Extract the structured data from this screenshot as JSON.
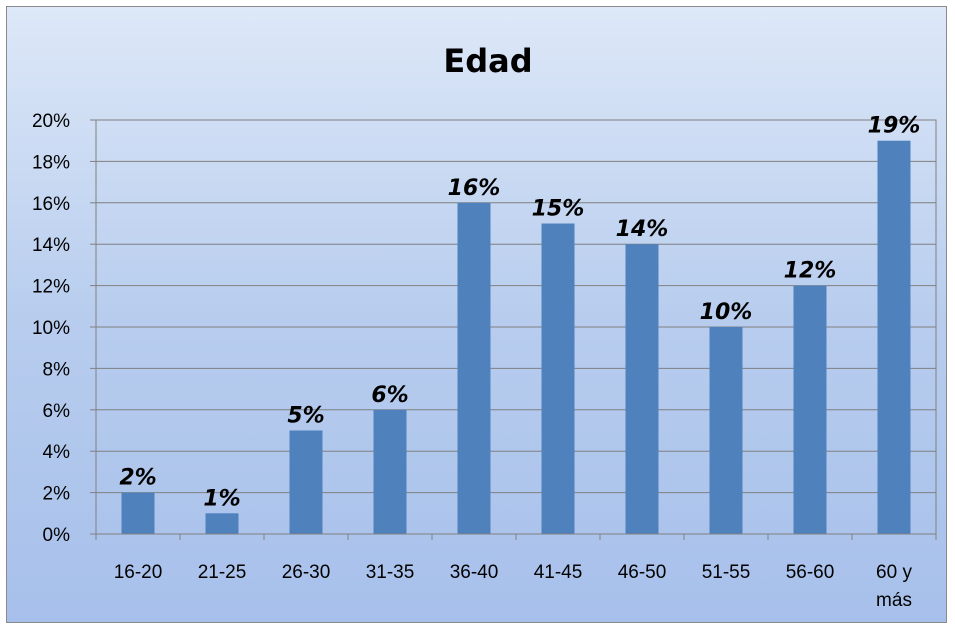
{
  "chart_data": {
    "type": "bar",
    "title": "Edad",
    "categories": [
      "16-20",
      "21-25",
      "26-30",
      "31-35",
      "36-40",
      "41-45",
      "46-50",
      "51-55",
      "56-60",
      "60 y más"
    ],
    "values": [
      2,
      1,
      5,
      6,
      16,
      15,
      14,
      10,
      12,
      19
    ],
    "data_labels": [
      "2%",
      "1%",
      "5%",
      "6%",
      "16%",
      "15%",
      "14%",
      "10%",
      "12%",
      "19%"
    ],
    "ylim": [
      0,
      20
    ],
    "y_ticks": [
      "0%",
      "2%",
      "4%",
      "6%",
      "8%",
      "10%",
      "12%",
      "14%",
      "16%",
      "18%",
      "20%"
    ],
    "grid": true,
    "legend": "none",
    "bar_color": "#4f81bd"
  }
}
